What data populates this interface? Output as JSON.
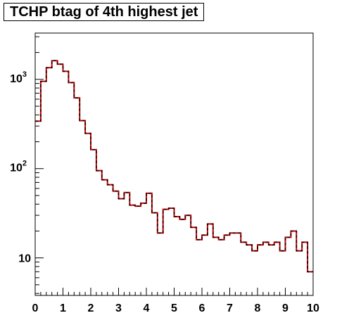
{
  "title": "TCHP btag of 4th highest jet",
  "chart_data": {
    "type": "histogram",
    "title": "TCHP btag of 4th highest jet",
    "xlabel": "",
    "ylabel": "",
    "xlim": [
      0,
      10
    ],
    "ylim": [
      3.8,
      3300
    ],
    "yscale": "log",
    "grid": false,
    "legend": "none",
    "bin_width": 0.2,
    "x_ticks": [
      "0",
      "1",
      "2",
      "3",
      "4",
      "5",
      "6",
      "7",
      "8",
      "9",
      "10"
    ],
    "y_ticks": [
      {
        "label": "10",
        "value": 10
      },
      {
        "label": "10",
        "exp": "2",
        "value": 100
      },
      {
        "label": "10",
        "exp": "3",
        "value": 1000
      }
    ],
    "series": [
      {
        "style": "red solid line overlaid by black dashed line",
        "line_colors": [
          "#cc0000",
          "#000000"
        ],
        "values": [
          340,
          950,
          1350,
          1620,
          1480,
          1230,
          920,
          620,
          345,
          248,
          163,
          95,
          75,
          66,
          56,
          46,
          54,
          39,
          38,
          41,
          53,
          32,
          19,
          35,
          36,
          29,
          27,
          30,
          22,
          16,
          18,
          24,
          17,
          16,
          18,
          19,
          19,
          15,
          14,
          12,
          14,
          15,
          14,
          15,
          12,
          17,
          20,
          12,
          15,
          7
        ]
      }
    ]
  }
}
